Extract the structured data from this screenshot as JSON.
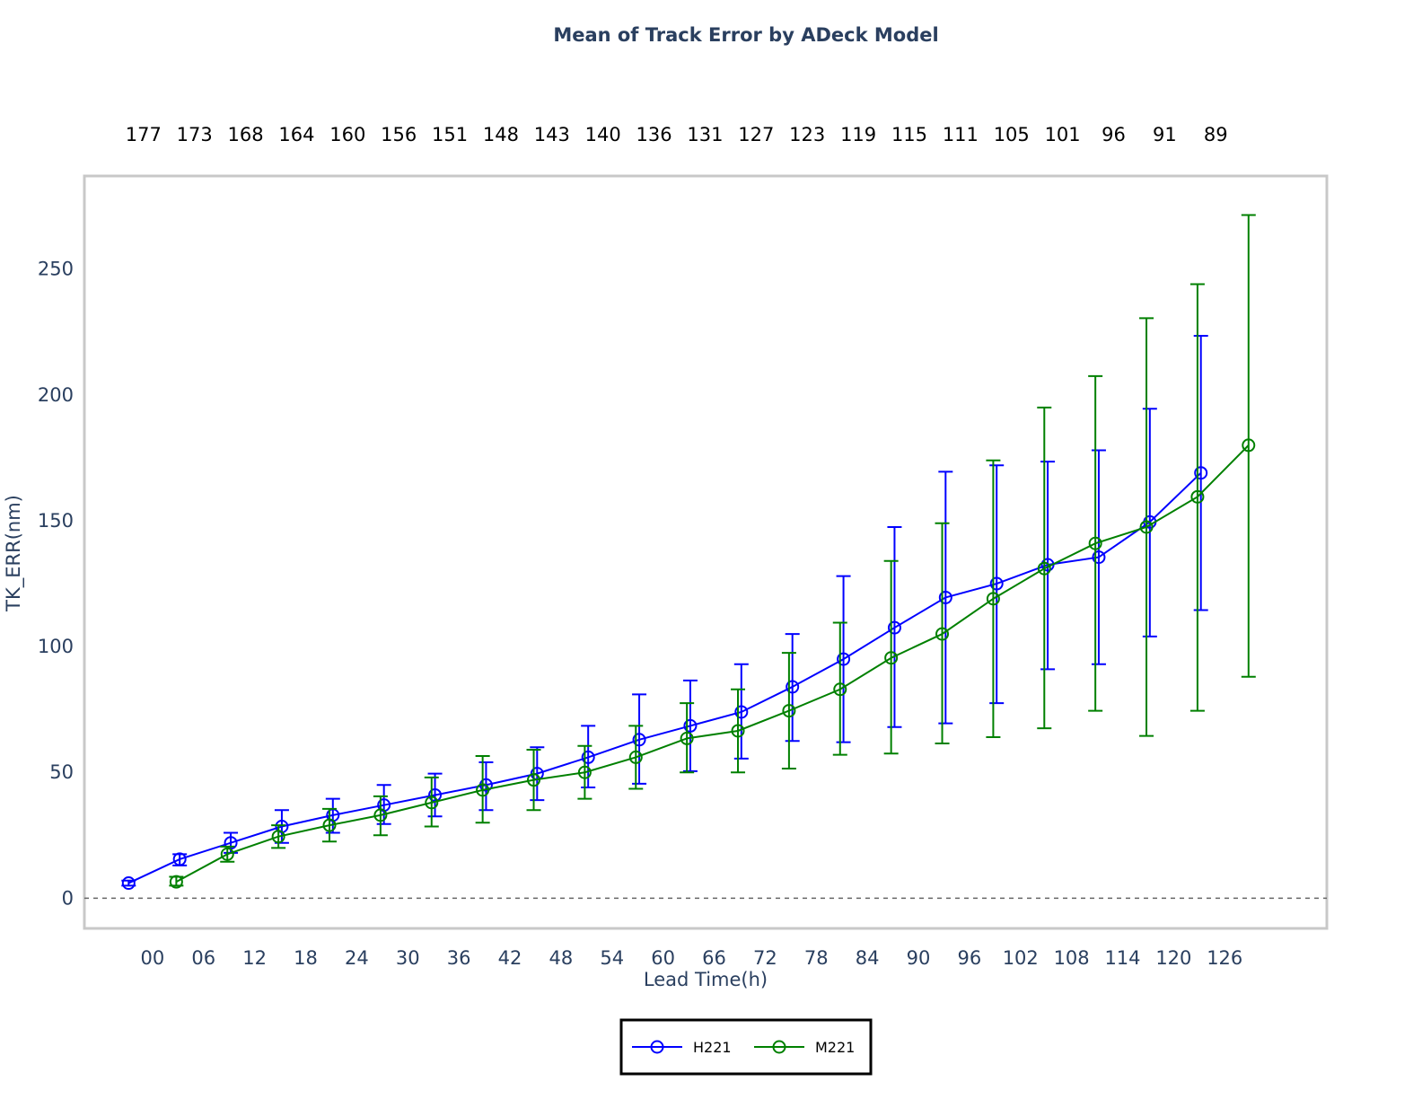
{
  "chart_data": {
    "type": "line",
    "title": "Mean of Track Error by ADeck Model",
    "xlabel": "Lead Time(h)",
    "ylabel": "TK_ERR(nm)",
    "categories": [
      "00",
      "06",
      "12",
      "18",
      "24",
      "30",
      "36",
      "42",
      "48",
      "54",
      "60",
      "66",
      "72",
      "78",
      "84",
      "90",
      "96",
      "102",
      "108",
      "114",
      "120",
      "126"
    ],
    "x": [
      0,
      6,
      12,
      18,
      24,
      30,
      36,
      42,
      48,
      54,
      60,
      66,
      72,
      78,
      84,
      90,
      96,
      102,
      108,
      114,
      120,
      126
    ],
    "xlim": [
      -8,
      138
    ],
    "ylim": [
      -12,
      287
    ],
    "yticks": [
      0,
      50,
      100,
      150,
      200,
      250
    ],
    "counts": [
      "177",
      "173",
      "168",
      "164",
      "160",
      "156",
      "151",
      "148",
      "143",
      "140",
      "136",
      "131",
      "127",
      "123",
      "119",
      "115",
      "111",
      "105",
      "101",
      "96",
      "91",
      "89"
    ],
    "grid": false,
    "zero_line": "dashed",
    "legend_position": "bottom-center",
    "series": [
      {
        "name": "H221",
        "color": "#0000ff",
        "values": [
          6,
          15.5,
          22,
          28.5,
          33,
          37,
          41,
          45,
          49.5,
          56,
          63,
          68.5,
          74,
          84,
          95,
          107.5,
          119.5,
          125,
          132.5,
          135.5,
          149.5,
          169
        ],
        "err_low": [
          5,
          13,
          18,
          22,
          26,
          29.5,
          32.5,
          35,
          39,
          44,
          45.5,
          50.5,
          55.5,
          62.5,
          62,
          68,
          69.5,
          77.5,
          91,
          93,
          104,
          114.5
        ],
        "err_high": [
          7,
          17.5,
          26,
          35,
          39.5,
          45,
          49.5,
          54,
          60,
          68.5,
          81,
          86.5,
          93,
          105,
          128,
          147.5,
          169.5,
          172,
          173.5,
          178,
          194.5,
          223.5
        ]
      },
      {
        "name": "M221",
        "color": "#008000",
        "values": [
          6.5,
          17.5,
          24.5,
          29,
          33,
          38,
          43,
          47,
          50,
          56,
          63.5,
          66.5,
          74.5,
          83,
          95.5,
          105,
          119,
          131,
          141,
          147.5,
          159.5,
          180
        ],
        "err_low": [
          5,
          14.5,
          20,
          22.5,
          25,
          28.5,
          30,
          35,
          39.5,
          43.5,
          50,
          50,
          51.5,
          57,
          57.5,
          61.5,
          64,
          67.5,
          74.5,
          64.5,
          74.5,
          88
        ],
        "err_high": [
          8.5,
          20.5,
          29,
          35.5,
          40.5,
          48,
          56.5,
          59,
          60.5,
          68.5,
          77.5,
          83,
          97.5,
          109.5,
          134,
          149,
          174,
          195,
          207.5,
          230.5,
          244,
          271.5
        ]
      }
    ]
  }
}
